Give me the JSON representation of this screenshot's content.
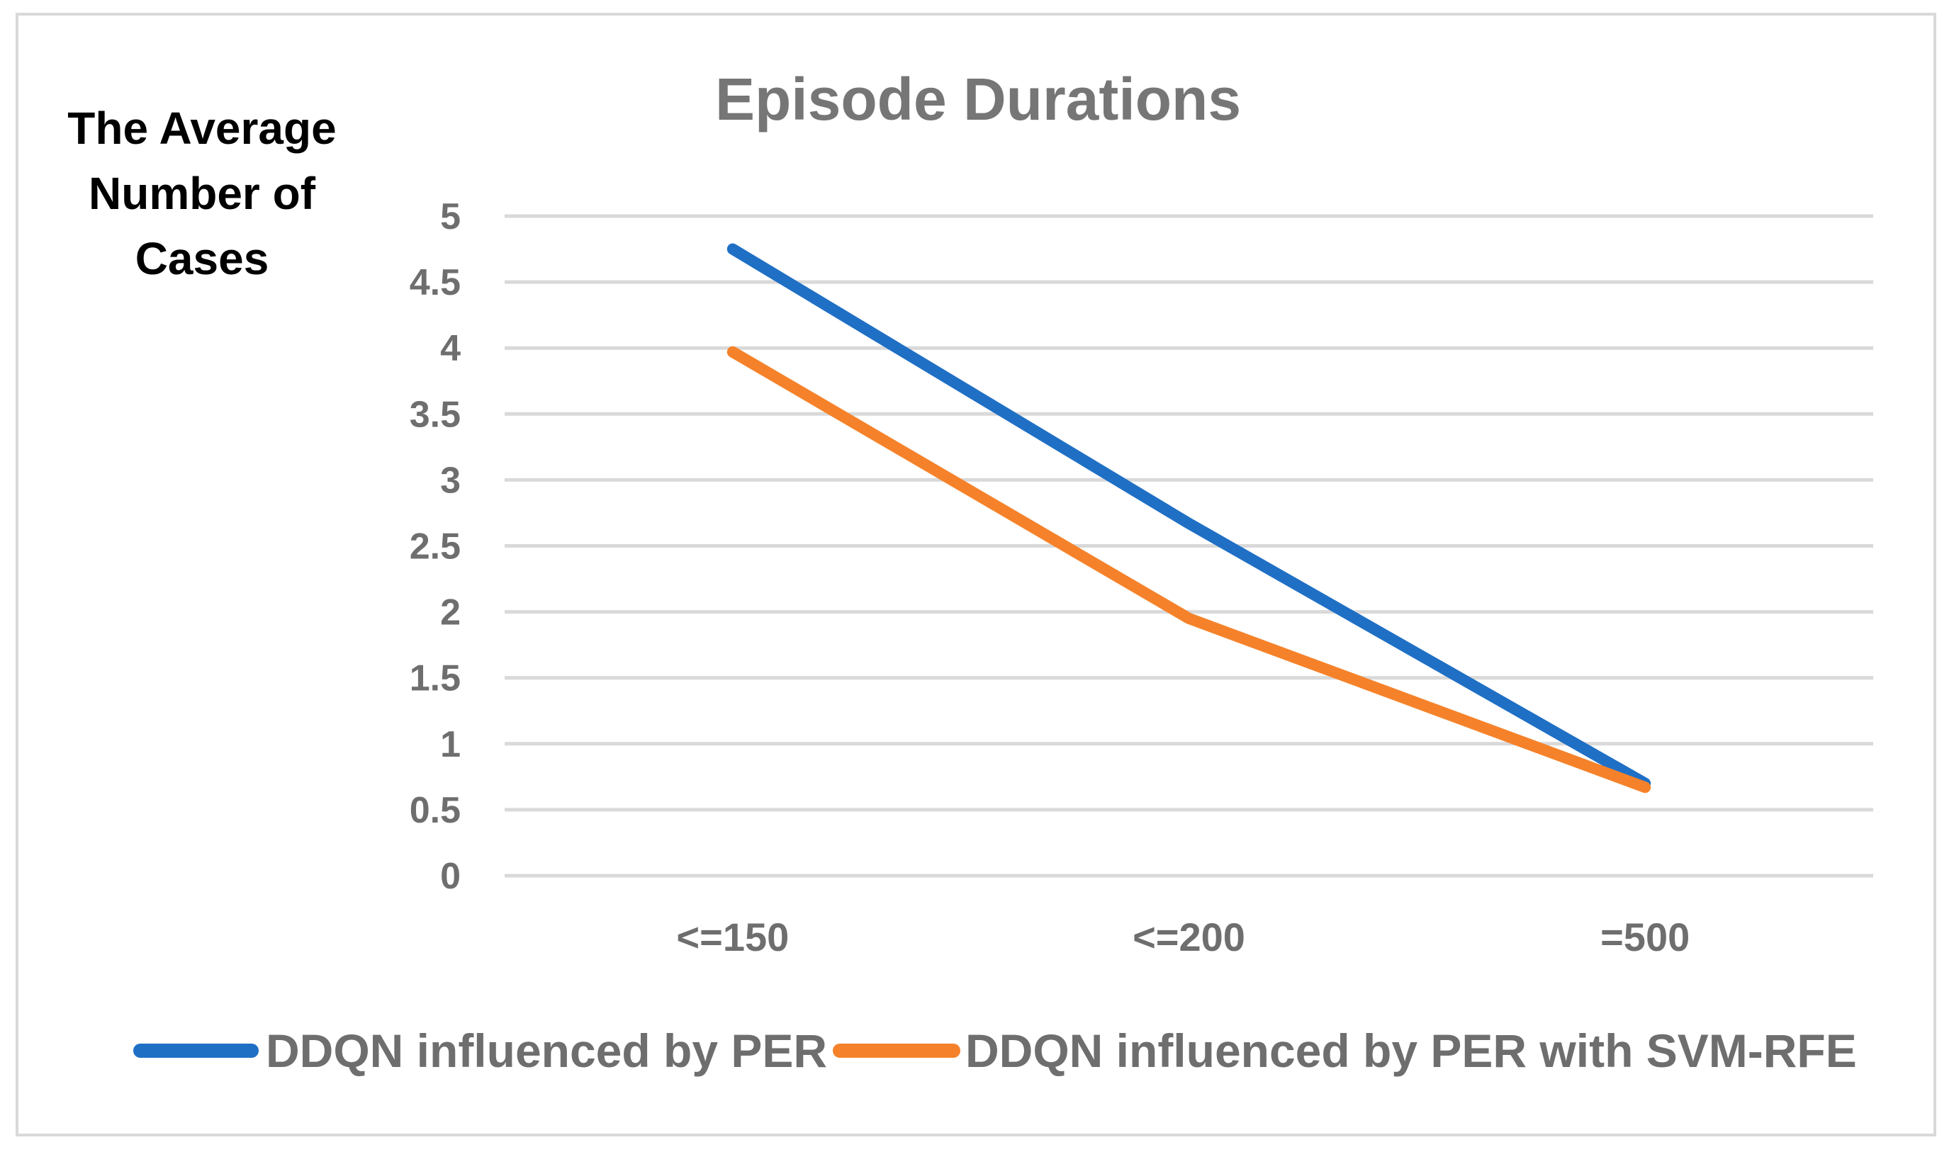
{
  "chart_data": {
    "type": "line",
    "title": "Episode Durations",
    "ylabel_lines": [
      "The Average",
      "Number of",
      "Cases"
    ],
    "xlabel": "",
    "categories": [
      "<=150",
      "<=200",
      "=500"
    ],
    "ylim": [
      0,
      5
    ],
    "yticks": [
      0,
      0.5,
      1,
      1.5,
      2,
      2.5,
      3,
      3.5,
      4,
      4.5,
      5
    ],
    "ytick_labels": [
      "0",
      "0.5",
      "1",
      "1.5",
      "2",
      "2.5",
      "3",
      "3.5",
      "4",
      "4.5",
      "5"
    ],
    "grid": true,
    "legend_position": "bottom",
    "series": [
      {
        "name": "DDQN influenced by PER",
        "color": "#1f6fc5",
        "values": [
          4.75,
          2.67,
          0.7
        ]
      },
      {
        "name": "DDQN influenced by PER with SVM-RFE",
        "color": "#f5822a",
        "values": [
          3.97,
          1.95,
          0.67
        ]
      }
    ]
  }
}
